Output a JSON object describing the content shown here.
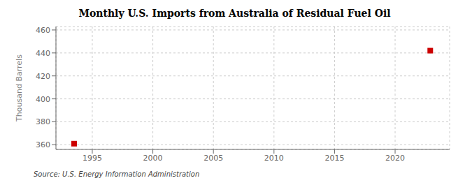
{
  "chart_data": {
    "type": "scatter",
    "title": "Monthly U.S. Imports from Australia of Residual Fuel Oil",
    "y_label": "Thousand Barrels",
    "annotations": [
      "Source: U.S. Energy Information Administration"
    ],
    "x": [
      1993.5,
      2022.9
    ],
    "values": [
      361,
      442
    ],
    "color": "#cc0000",
    "marker": "square",
    "xlim": [
      1992.0,
      2024.5
    ],
    "ylim": [
      356,
      463
    ],
    "xticks": [
      1995,
      2000,
      2005,
      2010,
      2015,
      2020
    ],
    "yticks": [
      360,
      380,
      400,
      420,
      440,
      460
    ],
    "grid": true
  }
}
